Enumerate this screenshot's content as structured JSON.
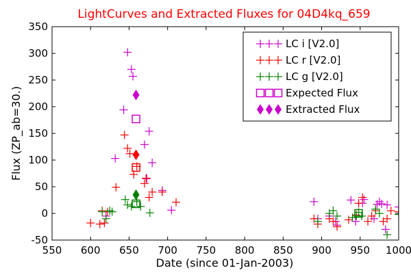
{
  "chart_data": {
    "type": "scatter",
    "title": "LightCurves and Extracted Fluxes for 04D4kq_659",
    "xlabel": "Date (since 01-Jan-2003)",
    "ylabel": "Flux (ZP_ab=30.)",
    "xlim": [
      550,
      1000
    ],
    "ylim": [
      -50,
      350
    ],
    "xticks": [
      550,
      600,
      650,
      700,
      750,
      800,
      850,
      900,
      950,
      1000
    ],
    "yticks": [
      -50,
      0,
      50,
      100,
      150,
      200,
      250,
      300,
      350
    ],
    "legend_position": "upper-right",
    "grid": false,
    "series": [
      {
        "name": "LC i [V2.0]",
        "marker": "plus",
        "color": "#cc00cc",
        "points": [
          [
            620,
            -5
          ],
          [
            632,
            103
          ],
          [
            643,
            194
          ],
          [
            648,
            302
          ],
          [
            653,
            270
          ],
          [
            655,
            257
          ],
          [
            670,
            129
          ],
          [
            673,
            65
          ],
          [
            676,
            154
          ],
          [
            680,
            95
          ],
          [
            693,
            43
          ],
          [
            705,
            6
          ],
          [
            890,
            22
          ],
          [
            895,
            -10
          ],
          [
            910,
            -5
          ],
          [
            918,
            -15
          ],
          [
            920,
            -22
          ],
          [
            938,
            25
          ],
          [
            944,
            -15
          ],
          [
            948,
            19
          ],
          [
            953,
            19
          ],
          [
            955,
            26
          ],
          [
            968,
            -10
          ],
          [
            972,
            17
          ],
          [
            975,
            22
          ],
          [
            978,
            18
          ],
          [
            983,
            -30
          ],
          [
            985,
            16
          ],
          [
            1000,
            12
          ]
        ]
      },
      {
        "name": "LC r [V2.0]",
        "marker": "plus",
        "color": "#ff0000",
        "points": [
          [
            600,
            -18
          ],
          [
            612,
            -20
          ],
          [
            615,
            5
          ],
          [
            618,
            -18
          ],
          [
            622,
            3
          ],
          [
            633,
            49
          ],
          [
            644,
            147
          ],
          [
            648,
            122
          ],
          [
            651,
            112
          ],
          [
            656,
            73
          ],
          [
            660,
            88
          ],
          [
            670,
            56
          ],
          [
            672,
            66
          ],
          [
            676,
            30
          ],
          [
            680,
            40
          ],
          [
            693,
            40
          ],
          [
            711,
            21
          ],
          [
            890,
            -10
          ],
          [
            895,
            -20
          ],
          [
            910,
            -10
          ],
          [
            915,
            -15
          ],
          [
            920,
            -25
          ],
          [
            935,
            -12
          ],
          [
            945,
            -3
          ],
          [
            948,
            19
          ],
          [
            953,
            30
          ],
          [
            960,
            -15
          ],
          [
            965,
            -5
          ],
          [
            970,
            5
          ],
          [
            980,
            -15
          ],
          [
            985,
            -10
          ],
          [
            990,
            5
          ],
          [
            1000,
            3
          ]
        ]
      },
      {
        "name": "LC g [V2.0]",
        "marker": "plus",
        "color": "#008000",
        "points": [
          [
            615,
            3
          ],
          [
            620,
            -10
          ],
          [
            625,
            5
          ],
          [
            628,
            3
          ],
          [
            645,
            26
          ],
          [
            648,
            16
          ],
          [
            653,
            13
          ],
          [
            660,
            22
          ],
          [
            665,
            13
          ],
          [
            677,
            1
          ],
          [
            895,
            -15
          ],
          [
            910,
            0
          ],
          [
            915,
            5
          ],
          [
            920,
            -5
          ],
          [
            940,
            -8
          ],
          [
            945,
            -5
          ],
          [
            948,
            2
          ],
          [
            952,
            -5
          ],
          [
            970,
            8
          ],
          [
            975,
            0
          ],
          [
            985,
            -40
          ],
          [
            1000,
            -2
          ]
        ]
      },
      {
        "name": "Expected Flux",
        "marker": "square-open",
        "color": "#cc00cc",
        "points": []
      },
      {
        "name": "Extracted Flux",
        "marker": "diamond-filled",
        "color": "#cc00cc",
        "points": []
      }
    ],
    "expected_points": [
      {
        "x": 659,
        "y": 177,
        "color": "#cc00cc"
      },
      {
        "x": 659,
        "y": 86,
        "color": "#ff0000"
      },
      {
        "x": 659,
        "y": 18,
        "color": "#008000"
      },
      {
        "x": 948,
        "y": 0,
        "color": "#008000"
      }
    ],
    "extracted_points": [
      {
        "x": 659,
        "y": 222,
        "color": "#cc00cc"
      },
      {
        "x": 659,
        "y": 110,
        "color": "#ff0000"
      },
      {
        "x": 659,
        "y": 35,
        "color": "#008000"
      }
    ]
  }
}
